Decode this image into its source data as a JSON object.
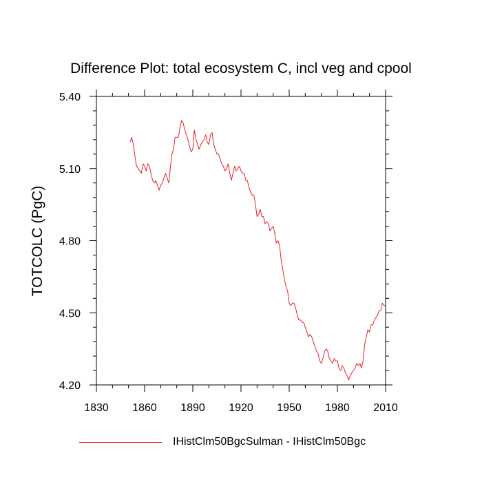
{
  "chart_data": {
    "type": "line",
    "title": "Difference Plot: total ecosystem C, incl veg and cpool",
    "xlabel": "",
    "ylabel": "TOTCOLC  (PgC)",
    "xlim": [
      1830,
      2010
    ],
    "ylim": [
      4.2,
      5.4
    ],
    "xticks": [
      1830,
      1860,
      1890,
      1920,
      1950,
      1980,
      2010
    ],
    "xtick_labels": [
      "1830",
      "1860",
      "1890",
      "1920",
      "1950",
      "1980",
      "2010"
    ],
    "yticks": [
      4.2,
      4.5,
      4.8,
      5.1,
      5.4
    ],
    "ytick_labels": [
      "4.20",
      "4.50",
      "4.80",
      "5.10",
      "5.40"
    ],
    "grid": false,
    "legend_position": "bottom",
    "series": [
      {
        "name": "IHistClm50BgcSulman - IHistClm50Bgc",
        "color": "#e8202a",
        "x": [
          1851,
          1852,
          1853,
          1854,
          1855,
          1856,
          1857,
          1858,
          1859,
          1860,
          1861,
          1862,
          1863,
          1864,
          1865,
          1866,
          1867,
          1868,
          1869,
          1870,
          1871,
          1872,
          1873,
          1874,
          1875,
          1876,
          1877,
          1878,
          1879,
          1880,
          1881,
          1882,
          1883,
          1884,
          1885,
          1886,
          1887,
          1888,
          1889,
          1890,
          1891,
          1892,
          1893,
          1894,
          1895,
          1896,
          1897,
          1898,
          1899,
          1900,
          1901,
          1902,
          1903,
          1904,
          1905,
          1906,
          1907,
          1908,
          1909,
          1910,
          1911,
          1912,
          1913,
          1914,
          1915,
          1916,
          1917,
          1918,
          1919,
          1920,
          1921,
          1922,
          1923,
          1924,
          1925,
          1926,
          1927,
          1928,
          1929,
          1930,
          1931,
          1932,
          1933,
          1934,
          1935,
          1936,
          1937,
          1938,
          1939,
          1940,
          1941,
          1942,
          1943,
          1944,
          1945,
          1946,
          1947,
          1948,
          1949,
          1950,
          1951,
          1952,
          1953,
          1954,
          1955,
          1956,
          1957,
          1958,
          1959,
          1960,
          1961,
          1962,
          1963,
          1964,
          1965,
          1966,
          1967,
          1968,
          1969,
          1970,
          1971,
          1972,
          1973,
          1974,
          1975,
          1976,
          1977,
          1978,
          1979,
          1980,
          1981,
          1982,
          1983,
          1984,
          1985,
          1986,
          1987,
          1988,
          1989,
          1990,
          1991,
          1992,
          1993,
          1994,
          1995,
          1996,
          1997,
          1998,
          1999,
          2000,
          2001,
          2002,
          2003,
          2004,
          2005,
          2006,
          2007,
          2008,
          2009,
          2010
        ],
        "values": [
          5.21,
          5.23,
          5.2,
          5.15,
          5.11,
          5.1,
          5.09,
          5.08,
          5.12,
          5.11,
          5.09,
          5.12,
          5.11,
          5.08,
          5.05,
          5.04,
          5.05,
          5.03,
          5.01,
          5.03,
          5.04,
          5.06,
          5.08,
          5.06,
          5.04,
          5.1,
          5.16,
          5.18,
          5.23,
          5.23,
          5.23,
          5.27,
          5.3,
          5.29,
          5.26,
          5.24,
          5.22,
          5.19,
          5.17,
          5.18,
          5.26,
          5.22,
          5.2,
          5.18,
          5.2,
          5.21,
          5.22,
          5.24,
          5.21,
          5.2,
          5.24,
          5.25,
          5.2,
          5.18,
          5.16,
          5.16,
          5.14,
          5.12,
          5.11,
          5.09,
          5.1,
          5.12,
          5.08,
          5.05,
          5.08,
          5.11,
          5.09,
          5.1,
          5.11,
          5.09,
          5.08,
          5.08,
          5.05,
          5.05,
          5.02,
          5.0,
          4.99,
          4.99,
          4.95,
          4.9,
          4.91,
          4.93,
          4.9,
          4.9,
          4.87,
          4.88,
          4.87,
          4.84,
          4.85,
          4.86,
          4.83,
          4.79,
          4.8,
          4.78,
          4.72,
          4.68,
          4.64,
          4.61,
          4.59,
          4.54,
          4.53,
          4.54,
          4.54,
          4.52,
          4.49,
          4.47,
          4.47,
          4.46,
          4.46,
          4.44,
          4.42,
          4.4,
          4.41,
          4.4,
          4.38,
          4.36,
          4.34,
          4.33,
          4.3,
          4.29,
          4.31,
          4.34,
          4.35,
          4.34,
          4.31,
          4.3,
          4.29,
          4.31,
          4.3,
          4.3,
          4.27,
          4.26,
          4.28,
          4.27,
          4.25,
          4.24,
          4.22,
          4.24,
          4.25,
          4.26,
          4.27,
          4.29,
          4.28,
          4.29,
          4.27,
          4.3,
          4.37,
          4.4,
          4.43,
          4.42,
          4.45,
          4.45,
          4.47,
          4.48,
          4.49,
          4.51,
          4.51,
          4.54,
          4.53,
          4.53
        ]
      }
    ]
  }
}
